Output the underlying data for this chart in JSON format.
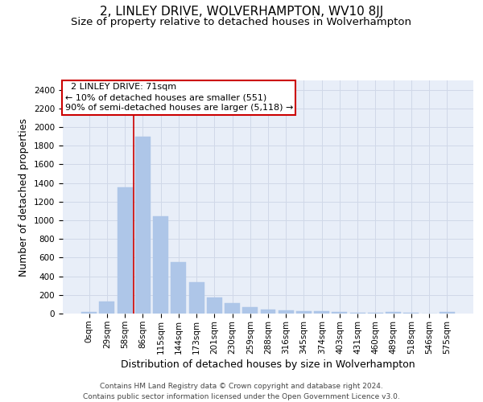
{
  "title": "2, LINLEY DRIVE, WOLVERHAMPTON, WV10 8JJ",
  "subtitle": "Size of property relative to detached houses in Wolverhampton",
  "xlabel": "Distribution of detached houses by size in Wolverhampton",
  "ylabel": "Number of detached properties",
  "footer_line1": "Contains HM Land Registry data © Crown copyright and database right 2024.",
  "footer_line2": "Contains public sector information licensed under the Open Government Licence v3.0.",
  "bar_labels": [
    "0sqm",
    "29sqm",
    "58sqm",
    "86sqm",
    "115sqm",
    "144sqm",
    "173sqm",
    "201sqm",
    "230sqm",
    "259sqm",
    "288sqm",
    "316sqm",
    "345sqm",
    "374sqm",
    "403sqm",
    "431sqm",
    "460sqm",
    "489sqm",
    "518sqm",
    "546sqm",
    "575sqm"
  ],
  "bar_values": [
    15,
    130,
    1350,
    1900,
    1045,
    550,
    340,
    175,
    115,
    65,
    45,
    35,
    30,
    22,
    15,
    8,
    5,
    20,
    5,
    4,
    18
  ],
  "bar_color": "#aec6e8",
  "bar_edgecolor": "#aec6e8",
  "grid_color": "#d0d8e8",
  "background_color": "#e8eef8",
  "vline_x_index": 2,
  "vline_color": "#cc0000",
  "annotation_text": "  2 LINLEY DRIVE: 71sqm  \n← 10% of detached houses are smaller (551)\n90% of semi-detached houses are larger (5,118) →",
  "annotation_box_color": "#ffffff",
  "annotation_box_edgecolor": "#cc0000",
  "ylim": [
    0,
    2500
  ],
  "yticks": [
    0,
    200,
    400,
    600,
    800,
    1000,
    1200,
    1400,
    1600,
    1800,
    2000,
    2200,
    2400
  ],
  "title_fontsize": 11,
  "subtitle_fontsize": 9.5,
  "xlabel_fontsize": 9,
  "ylabel_fontsize": 9,
  "tick_fontsize": 7.5,
  "annotation_fontsize": 8,
  "footer_fontsize": 6.5
}
